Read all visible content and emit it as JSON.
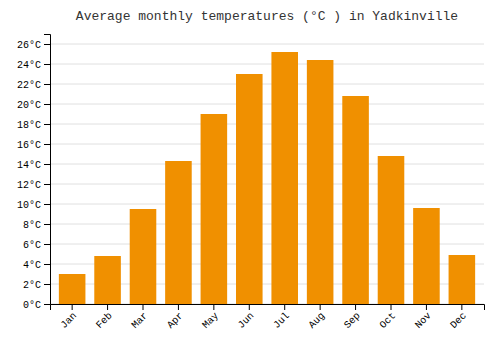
{
  "chart_data": {
    "type": "bar",
    "title": "Average monthly temperatures (°C ) in Yadkinville",
    "categories": [
      "Jan",
      "Feb",
      "Mar",
      "Apr",
      "May",
      "Jun",
      "Jul",
      "Aug",
      "Sep",
      "Oct",
      "Nov",
      "Dec"
    ],
    "values": [
      3.0,
      4.8,
      9.5,
      14.3,
      19.0,
      23.0,
      25.2,
      24.4,
      20.8,
      14.8,
      9.6,
      4.9
    ],
    "color": "#F09000",
    "ylim": [
      0,
      27
    ],
    "yticks": [
      {
        "value": 0,
        "label": "0°C"
      },
      {
        "value": 2,
        "label": "2°C"
      },
      {
        "value": 4,
        "label": "4°C"
      },
      {
        "value": 6,
        "label": "6°C"
      },
      {
        "value": 8,
        "label": "8°C"
      },
      {
        "value": 10,
        "label": "10°C"
      },
      {
        "value": 12,
        "label": "12°C"
      },
      {
        "value": 14,
        "label": "14°C"
      },
      {
        "value": 16,
        "label": "16°C"
      },
      {
        "value": 18,
        "label": "18°C"
      },
      {
        "value": 20,
        "label": "20°C"
      },
      {
        "value": 22,
        "label": "22°C"
      },
      {
        "value": 24,
        "label": "24°C"
      },
      {
        "value": 26,
        "label": "26°C"
      }
    ],
    "grid": true
  }
}
